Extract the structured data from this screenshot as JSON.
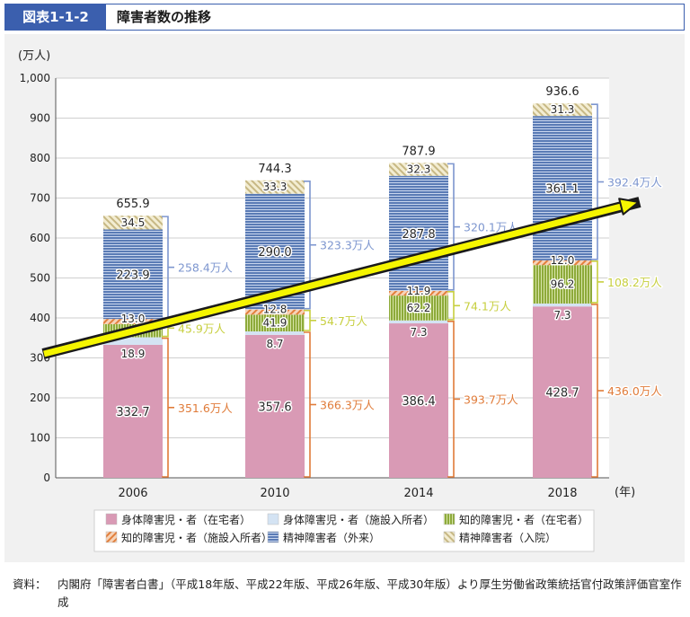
{
  "header": {
    "figure_label": "図表1-1-2",
    "title": "障害者数の推移"
  },
  "chart_data": {
    "type": "bar",
    "stacked": true,
    "y_unit": "(万人)",
    "x_unit": "(年)",
    "ylim": [
      0,
      1000
    ],
    "yticks": [
      "0",
      "100",
      "200",
      "300",
      "400",
      "500",
      "600",
      "700",
      "800",
      "900",
      "1,000"
    ],
    "categories": [
      "2006",
      "2010",
      "2014",
      "2018"
    ],
    "totals": [
      "655.9",
      "744.3",
      "787.9",
      "936.6"
    ],
    "series": [
      {
        "name": "身体障害児・者（在宅者）",
        "values": [
          332.7,
          357.6,
          386.4,
          428.7
        ],
        "labels": [
          "332.7",
          "357.6",
          "386.4",
          "428.7"
        ],
        "color": "#d99ab5"
      },
      {
        "name": "身体障害児・者（施設入所者）",
        "values": [
          18.9,
          8.7,
          7.3,
          7.3
        ],
        "labels": [
          "18.9",
          "8.7",
          "7.3",
          "7.3"
        ],
        "color": "#d4e3f3"
      },
      {
        "name": "知的障害児・者（在宅者）",
        "values": [
          32.9,
          41.9,
          62.2,
          96.2
        ],
        "labels": [
          "",
          "41.9",
          "62.2",
          "96.2"
        ],
        "color": "#8daa3a"
      },
      {
        "name": "知的障害児・者（施設入所者）",
        "values": [
          13.0,
          12.8,
          11.9,
          12.0
        ],
        "labels": [
          "13.0",
          "12.8",
          "11.9",
          "12.0"
        ],
        "color": "#e8a070"
      },
      {
        "name": "精神障害者（外来）",
        "values": [
          223.9,
          290.0,
          287.8,
          361.1
        ],
        "labels": [
          "223.9",
          "290.0",
          "287.8",
          "361.1"
        ],
        "color": "#5a7bb5"
      },
      {
        "name": "精神障害者（入院）",
        "values": [
          34.5,
          33.3,
          32.3,
          31.3
        ],
        "labels": [
          "34.5",
          "33.3",
          "32.3",
          "31.3"
        ],
        "color": "#d9cf9e"
      }
    ],
    "brackets": [
      {
        "group": "身体障害児・者",
        "color": "#e07b39",
        "labels": [
          "351.6万人",
          "366.3万人",
          "393.7万人",
          "436.0万人"
        ]
      },
      {
        "group": "知的障害児・者",
        "color": "#c7cf3f",
        "labels": [
          "45.9万人",
          "54.7万人",
          "74.1万人",
          "108.2万人"
        ]
      },
      {
        "group": "精神障害者",
        "color": "#7d96cf",
        "labels": [
          "258.4万人",
          "323.3万人",
          "320.1万人",
          "392.4万人"
        ]
      }
    ],
    "trend_arrow": true,
    "legend_position": "bottom"
  },
  "source": {
    "label": "資料：",
    "text": "内閣府「障害者白書」（平成18年版、平成22年版、平成26年版、平成30年版）より厚生労働省政策統括官付政策評価官室作成"
  }
}
